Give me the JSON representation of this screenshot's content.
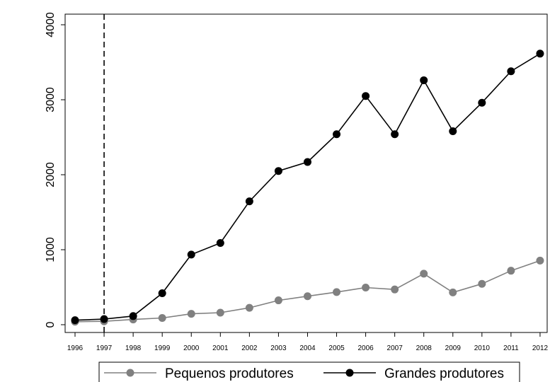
{
  "chart_data": {
    "type": "line",
    "title": "",
    "xlabel": "",
    "ylabel": "",
    "x": [
      "1996",
      "1997",
      "1998",
      "1999",
      "2000",
      "2001",
      "2002",
      "2003",
      "2004",
      "2005",
      "2006",
      "2007",
      "2008",
      "2009",
      "2010",
      "2011",
      "2012"
    ],
    "ylim": [
      0,
      4000
    ],
    "yticks": [
      "0",
      "1000",
      "2000",
      "3000",
      "4000"
    ],
    "grid": false,
    "legend_position": "bottom",
    "reference_line": {
      "x": "1997",
      "style": "dashed"
    },
    "series": [
      {
        "name": "Pequenos produtores",
        "color": "#808080",
        "values": [
          40,
          45,
          70,
          90,
          145,
          160,
          225,
          325,
          380,
          435,
          495,
          470,
          680,
          430,
          545,
          720,
          855
        ]
      },
      {
        "name": "Grandes produtores",
        "color": "#000000",
        "values": [
          60,
          75,
          115,
          420,
          935,
          1090,
          1645,
          2050,
          2170,
          2540,
          3050,
          2540,
          3260,
          2580,
          2960,
          3380,
          3615
        ]
      }
    ]
  }
}
